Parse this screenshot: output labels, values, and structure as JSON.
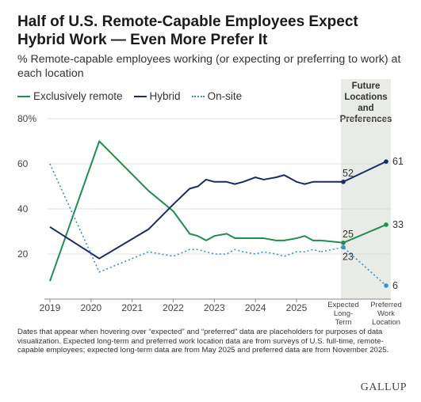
{
  "header": {
    "title": "Half of U.S. Remote-Capable Employees Expect Hybrid Work — Even More Prefer It",
    "subtitle": "% Remote-capable employees working (or expecting or preferring to work) at each location"
  },
  "legend": {
    "items": [
      {
        "label": "Exclusively remote",
        "style": "solid",
        "color": "#1f8f4e"
      },
      {
        "label": "Hybrid",
        "style": "solid",
        "color": "#1b2a6b"
      },
      {
        "label": "On-site",
        "style": "dotted",
        "color": "#3a8fc7"
      }
    ]
  },
  "footnote": "Dates that appear when hovering over “expected” and “preferred” data are placeholders for purposes of data visualization. Expected long-term and preferred work location data are from surveys of U.S. full-time, remote-capable employees; expected long-term data are from May 2025 and preferred data are from November 2025.",
  "brand": "GALLUP",
  "chart_data": {
    "type": "line",
    "ylim": [
      0,
      80
    ],
    "y_ticks": [
      "20",
      "40",
      "60",
      "80%"
    ],
    "y_tick_values": [
      20,
      40,
      60,
      80
    ],
    "x_ticks": [
      "2019",
      "2020",
      "2021",
      "2022",
      "2023",
      "2024",
      "2025"
    ],
    "x_tick_values": [
      2019,
      2020,
      2021,
      2022,
      2023,
      2024,
      2025
    ],
    "future_panel": {
      "title": "Future Locations and Preferences",
      "categories": [
        "Expected Long-Term",
        "Preferred Work Location"
      ]
    },
    "series": [
      {
        "name": "Exclusively remote",
        "color": "#1f8f4e",
        "style": "solid",
        "x": [
          2019.0,
          2020.2,
          2021.4,
          2022.0,
          2022.4,
          2022.6,
          2022.8,
          2023.0,
          2023.3,
          2023.5,
          2023.7,
          2024.0,
          2024.2,
          2024.5,
          2024.7,
          2025.0,
          2025.2,
          2025.4,
          2025.6
        ],
        "values": [
          8,
          70,
          48,
          39,
          29,
          28,
          26,
          28,
          29,
          27,
          27,
          27,
          27,
          26,
          26,
          27,
          28,
          26,
          26
        ],
        "future": [
          25,
          33
        ],
        "future_labels": [
          "25",
          "33"
        ]
      },
      {
        "name": "Hybrid",
        "color": "#1b2a6b",
        "style": "solid",
        "x": [
          2019.0,
          2020.2,
          2021.4,
          2022.0,
          2022.4,
          2022.6,
          2022.8,
          2023.0,
          2023.3,
          2023.5,
          2023.7,
          2024.0,
          2024.2,
          2024.5,
          2024.7,
          2025.0,
          2025.2,
          2025.4,
          2025.6
        ],
        "values": [
          32,
          18,
          31,
          42,
          49,
          50,
          53,
          52,
          52,
          51,
          52,
          54,
          53,
          54,
          55,
          52,
          51,
          52,
          52
        ],
        "future": [
          52,
          61
        ],
        "future_labels": [
          "52",
          "61"
        ]
      },
      {
        "name": "On-site",
        "color": "#3a8fc7",
        "style": "dotted",
        "x": [
          2019.0,
          2020.2,
          2021.4,
          2022.0,
          2022.4,
          2022.6,
          2022.8,
          2023.0,
          2023.3,
          2023.5,
          2023.7,
          2024.0,
          2024.2,
          2024.5,
          2024.7,
          2025.0,
          2025.2,
          2025.4,
          2025.6
        ],
        "values": [
          60,
          12,
          21,
          19,
          22,
          22,
          21,
          20,
          20,
          22,
          21,
          20,
          21,
          20,
          19,
          21,
          21,
          22,
          21
        ],
        "future": [
          23,
          6
        ],
        "future_labels": [
          "23",
          "6"
        ]
      }
    ]
  }
}
